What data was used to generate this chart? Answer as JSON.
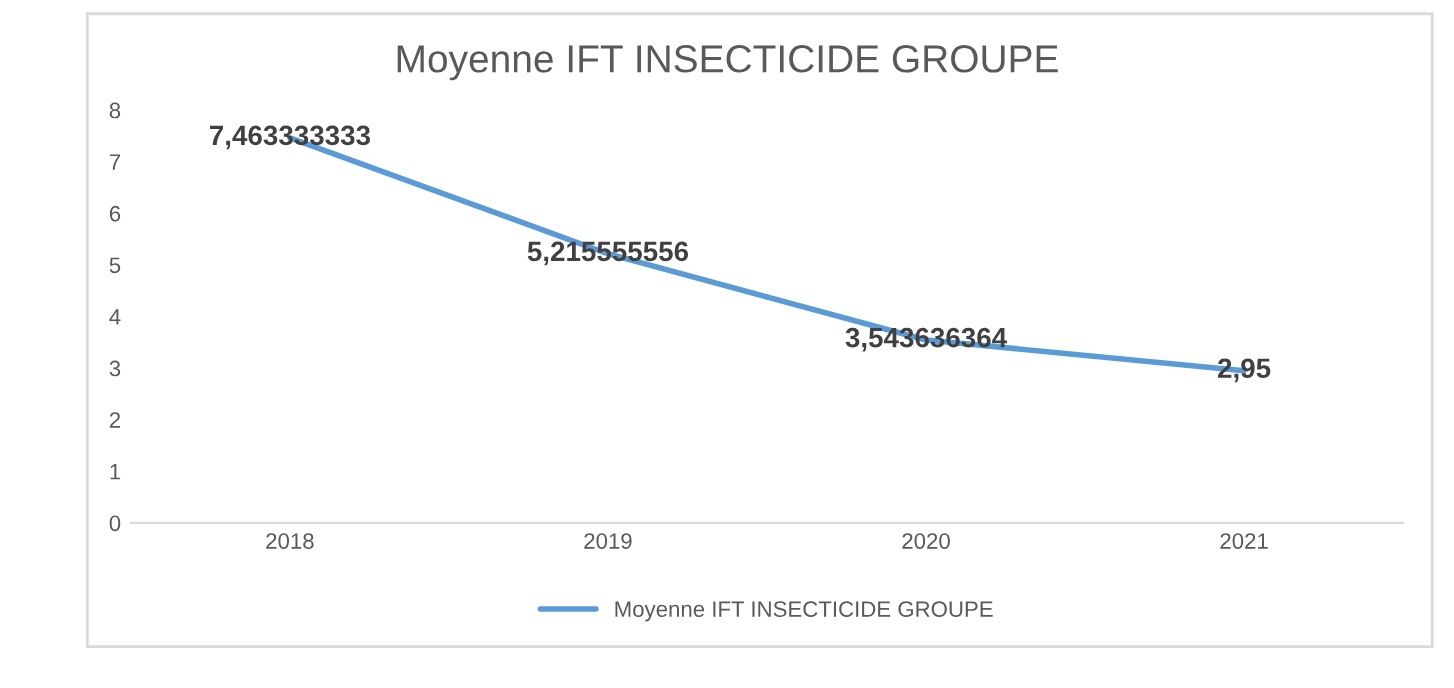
{
  "chart_data": {
    "type": "line",
    "title": "Moyenne IFT INSECTICIDE GROUPE",
    "categories": [
      "2018",
      "2019",
      "2020",
      "2021"
    ],
    "series": [
      {
        "name": "Moyenne IFT INSECTICIDE GROUPE",
        "color": "#5b9bd5",
        "values": [
          7.463333333,
          5.215555556,
          3.543636364,
          2.95
        ],
        "value_labels": [
          "7,463333333",
          "5,215555556",
          "3,543636364",
          "2,95"
        ]
      }
    ],
    "ylim": [
      0,
      8
    ],
    "yticks": [
      0,
      1,
      2,
      3,
      4,
      5,
      6,
      7,
      8
    ],
    "grid": false,
    "legend": "bottom",
    "marker": "none",
    "line_style": "solid"
  }
}
